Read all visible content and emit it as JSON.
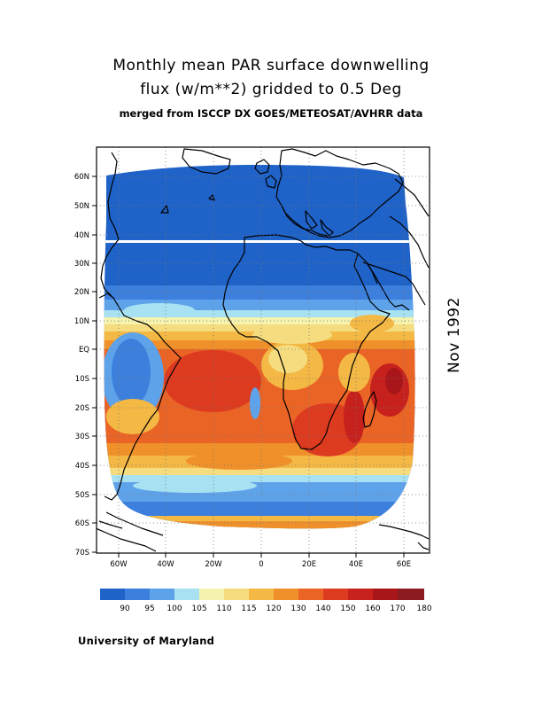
{
  "title": {
    "line1": "Monthly mean PAR surface downwelling",
    "line2": "flux (w/m**2) gridded to 0.5 Deg",
    "line3": "merged from ISCCP DX GOES/METEOSAT/AVHRR data"
  },
  "date_label": "Nov 1992",
  "credit": "University of Maryland",
  "map": {
    "lat_labels": [
      "60N",
      "50N",
      "40N",
      "30N",
      "20N",
      "10N",
      "EQ",
      "10S",
      "20S",
      "30S",
      "40S",
      "50S",
      "60S",
      "70S"
    ],
    "lon_labels": [
      "60W",
      "40W",
      "20W",
      "0",
      "20E",
      "40E",
      "60E"
    ],
    "lat_range": [
      -70,
      70
    ],
    "lon_range": [
      -70,
      70
    ]
  },
  "legend": {
    "colors": [
      "#1f62c8",
      "#3d7fdc",
      "#5ea3ea",
      "#a8e2f2",
      "#f6f3ae",
      "#f5dc7e",
      "#f4b845",
      "#f0902a",
      "#ea6426",
      "#dd3b20",
      "#c6211c",
      "#a8161a",
      "#8c1b1f"
    ],
    "labels": [
      "90",
      "95",
      "100",
      "105",
      "110",
      "115",
      "120",
      "130",
      "140",
      "150",
      "160",
      "170",
      "180"
    ]
  },
  "chart_data": {
    "type": "heatmap",
    "title": "Monthly mean PAR surface downwelling flux (w/m**2) gridded to 0.5 Deg",
    "subtitle": "merged from ISCCP DX GOES/METEOSAT/AVHRR data",
    "x_ticks": [
      "60W",
      "40W",
      "20W",
      "0",
      "20E",
      "40E",
      "60E"
    ],
    "y_ticks": [
      "60N",
      "50N",
      "40N",
      "30N",
      "20N",
      "10N",
      "EQ",
      "10S",
      "20S",
      "30S",
      "40S",
      "50S",
      "60S",
      "70S"
    ],
    "xlim": [
      -70,
      70
    ],
    "ylim": [
      -70,
      70
    ],
    "color_scale_levels": [
      90,
      95,
      100,
      105,
      110,
      115,
      120,
      130,
      140,
      150,
      160,
      170,
      180
    ],
    "zonal_profile_approx": [
      {
        "lat": 65,
        "value": 90
      },
      {
        "lat": 55,
        "value": 90
      },
      {
        "lat": 45,
        "value": 90
      },
      {
        "lat": 35,
        "value": 92
      },
      {
        "lat": 25,
        "value": 95
      },
      {
        "lat": 15,
        "value": 105
      },
      {
        "lat": 10,
        "value": 112
      },
      {
        "lat": 5,
        "value": 125
      },
      {
        "lat": 0,
        "value": 135
      },
      {
        "lat": -10,
        "value": 148
      },
      {
        "lat": -20,
        "value": 150
      },
      {
        "lat": -30,
        "value": 140
      },
      {
        "lat": -40,
        "value": 118
      },
      {
        "lat": -50,
        "value": 98
      },
      {
        "lat": -60,
        "value": 120
      }
    ]
  }
}
